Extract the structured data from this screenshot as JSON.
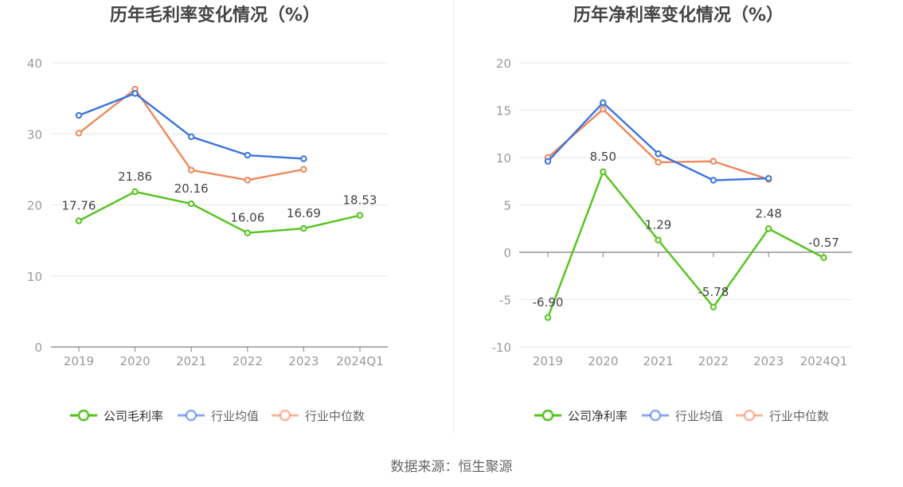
{
  "source_text": "数据来源：恒生聚源",
  "legend_labels": [
    "公司毛利率",
    "行业均值",
    "行业中位数",
    "公司净利率"
  ],
  "colors": {
    "company": "#52c41a",
    "industry_avg": "#3a73df",
    "industry_median": "#f0875a",
    "axis": "#7f7f7f",
    "grid": "#e6e6e6",
    "tick_text": "#9a9a9a",
    "label_text": "#444444",
    "title_text": "#444444"
  },
  "chart_data": [
    {
      "type": "line",
      "title": "历年毛利率变化情况（%）",
      "categories": [
        "2019",
        "2020",
        "2021",
        "2022",
        "2023",
        "2024Q1"
      ],
      "ylim": [
        0,
        40
      ],
      "yticks": [
        0,
        10,
        20,
        30,
        40
      ],
      "grid": true,
      "legend_position": "bottom",
      "series": [
        {
          "name": "公司毛利率",
          "color_key": "company",
          "labeled": true,
          "values": [
            17.76,
            21.86,
            20.16,
            16.06,
            16.69,
            18.53
          ],
          "labels": [
            "17.76",
            "21.86",
            "20.16",
            "16.06",
            "16.69",
            "18.53"
          ]
        },
        {
          "name": "行业均值",
          "color_key": "industry_avg",
          "labeled": false,
          "values": [
            32.6,
            35.7,
            29.6,
            27.0,
            26.5,
            null
          ]
        },
        {
          "name": "行业中位数",
          "color_key": "industry_median",
          "labeled": false,
          "values": [
            30.1,
            36.3,
            24.9,
            23.5,
            25.0,
            null
          ]
        }
      ]
    },
    {
      "type": "line",
      "title": "历年净利率变化情况（%）",
      "categories": [
        "2019",
        "2020",
        "2021",
        "2022",
        "2023",
        "2024Q1"
      ],
      "ylim": [
        -10,
        20
      ],
      "yticks": [
        -10,
        -5,
        0,
        5,
        10,
        15,
        20
      ],
      "grid": true,
      "legend_position": "bottom",
      "series": [
        {
          "name": "公司净利率",
          "color_key": "company",
          "labeled": true,
          "values": [
            -6.9,
            8.5,
            1.29,
            -5.78,
            2.48,
            -0.57
          ],
          "labels": [
            "-6.90",
            "8.50",
            "1.29",
            "-5.78",
            "2.48",
            "-0.57"
          ]
        },
        {
          "name": "行业均值",
          "color_key": "industry_avg",
          "labeled": false,
          "values": [
            9.6,
            15.8,
            10.4,
            7.6,
            7.8,
            null
          ]
        },
        {
          "name": "行业中位数",
          "color_key": "industry_median",
          "labeled": false,
          "values": [
            10.0,
            15.1,
            9.5,
            9.6,
            7.7,
            null
          ]
        }
      ]
    }
  ]
}
